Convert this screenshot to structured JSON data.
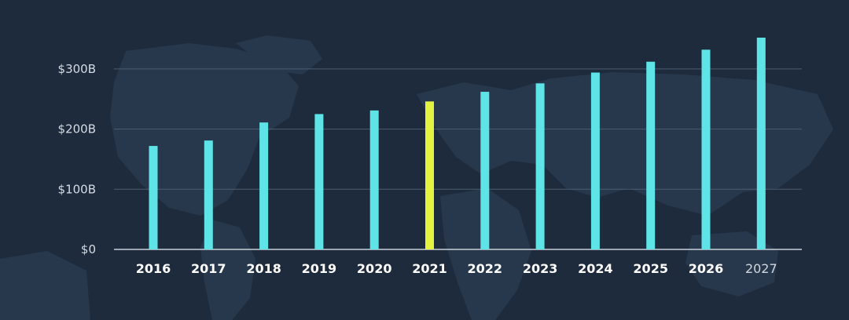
{
  "chart_data": {
    "type": "bar",
    "title": "",
    "xlabel": "",
    "ylabel": "",
    "categories": [
      "2016",
      "2017",
      "2018",
      "2019",
      "2020",
      "2021",
      "2022",
      "2023",
      "2024",
      "2025",
      "2026",
      "2027"
    ],
    "values": [
      172,
      181,
      211,
      225,
      231,
      246,
      262,
      276,
      294,
      312,
      332,
      352
    ],
    "ylim": [
      0,
      352
    ],
    "yticks": [
      0,
      100,
      200,
      300
    ],
    "ytick_labels": [
      "$0",
      "$100B",
      "$200B",
      "$300B"
    ],
    "unit": "$B",
    "highlight_category": "2021",
    "light_label_category": "2027",
    "grid": true,
    "legend": "none",
    "colors": {
      "background": "#1e2b3c",
      "bar": "#5ee3e7",
      "highlight_bar": "#e4f33f",
      "grid": "#4b5d70",
      "axis": "#c7cfd8"
    }
  }
}
